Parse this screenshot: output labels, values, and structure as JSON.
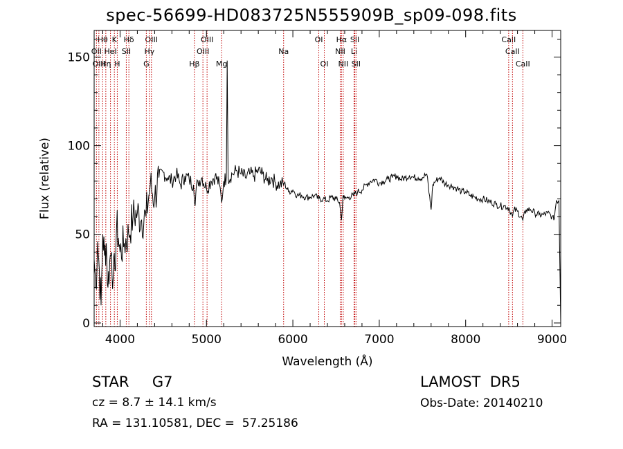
{
  "chart_data": {
    "type": "line",
    "title": "spec-56699-HD083725N555909B_sp09-098.fits",
    "xlabel": "Wavelength (Å)",
    "ylabel": "Flux (relative)",
    "xlim": [
      3700,
      9100
    ],
    "ylim": [
      -2,
      165
    ],
    "xticks": [
      4000,
      5000,
      6000,
      7000,
      8000,
      9000
    ],
    "yticks": [
      0,
      50,
      100,
      150
    ],
    "grid": false,
    "line_color": "#000000",
    "marker_color": "#c00000",
    "spectrum": {
      "x": [
        3700,
        3720,
        3740,
        3760,
        3780,
        3800,
        3820,
        3840,
        3860,
        3880,
        3900,
        3920,
        3940,
        3960,
        3980,
        4000,
        4050,
        4100,
        4150,
        4200,
        4250,
        4300,
        4350,
        4400,
        4450,
        4500,
        4550,
        4600,
        4650,
        4700,
        4750,
        4800,
        4850,
        4861,
        4900,
        4950,
        5000,
        5050,
        5100,
        5150,
        5175,
        5200,
        5230,
        5240,
        5250,
        5300,
        5350,
        5400,
        5450,
        5500,
        5550,
        5600,
        5650,
        5700,
        5750,
        5800,
        5850,
        5900,
        5950,
        6000,
        6050,
        6100,
        6150,
        6200,
        6250,
        6300,
        6350,
        6400,
        6450,
        6500,
        6540,
        6563,
        6580,
        6600,
        6650,
        6700,
        6750,
        6800,
        6850,
        6900,
        6950,
        7000,
        7050,
        7100,
        7150,
        7200,
        7250,
        7300,
        7350,
        7400,
        7450,
        7500,
        7550,
        7600,
        7620,
        7650,
        7700,
        7750,
        7800,
        7850,
        7900,
        7950,
        8000,
        8050,
        8100,
        8150,
        8200,
        8250,
        8300,
        8350,
        8400,
        8450,
        8500,
        8542,
        8560,
        8600,
        8662,
        8700,
        8750,
        8800,
        8850,
        8900,
        8950,
        9000,
        9020,
        9050,
        9080,
        9100
      ],
      "y": [
        36,
        20,
        46,
        30,
        10,
        50,
        38,
        45,
        20,
        35,
        40,
        25,
        30,
        55,
        48,
        40,
        45,
        50,
        60,
        62,
        58,
        60,
        78,
        70,
        82,
        85,
        82,
        80,
        84,
        78,
        83,
        81,
        78,
        68,
        80,
        82,
        76,
        80,
        83,
        78,
        68,
        80,
        82,
        148,
        82,
        84,
        86,
        84,
        82,
        84,
        83,
        86,
        84,
        80,
        82,
        79,
        78,
        79,
        74,
        75,
        72,
        72,
        71,
        71,
        72,
        70,
        70,
        69,
        71,
        70,
        68,
        58,
        72,
        70,
        71,
        72,
        74,
        75,
        78,
        80,
        81,
        79,
        80,
        81,
        82,
        83,
        81,
        82,
        83,
        82,
        82,
        82,
        84,
        64,
        78,
        80,
        82,
        79,
        78,
        77,
        76,
        74,
        74,
        72,
        71,
        70,
        70,
        69,
        68,
        67,
        66,
        66,
        65,
        60,
        64,
        63,
        58,
        64,
        64,
        62,
        61,
        61,
        62,
        60,
        58,
        69,
        69,
        0
      ]
    },
    "line_markers": [
      {
        "label": "Hθ",
        "x": 3798,
        "row": 0
      },
      {
        "label": "K",
        "x": 3934,
        "row": 0
      },
      {
        "label": "Hδ",
        "x": 4102,
        "row": 0
      },
      {
        "label": "OIII",
        "x": 4363,
        "row": 0
      },
      {
        "label": "OIII",
        "x": 5007,
        "row": 0
      },
      {
        "label": "OI",
        "x": 6300,
        "row": 0
      },
      {
        "label": "Hα",
        "x": 6563,
        "row": 0
      },
      {
        "label": "SII",
        "x": 6717,
        "row": 0
      },
      {
        "label": "CaII",
        "x": 8498,
        "row": 0
      },
      {
        "label": "OII",
        "x": 3727,
        "row": 1
      },
      {
        "label": "HeI",
        "x": 3889,
        "row": 1
      },
      {
        "label": "SII",
        "x": 4072,
        "row": 1
      },
      {
        "label": "Hγ",
        "x": 4340,
        "row": 1
      },
      {
        "label": "OIII",
        "x": 4959,
        "row": 1
      },
      {
        "label": "Na",
        "x": 5893,
        "row": 1
      },
      {
        "label": "NII",
        "x": 6548,
        "row": 1
      },
      {
        "label": "Li",
        "x": 6708,
        "row": 1
      },
      {
        "label": "CaII",
        "x": 8542,
        "row": 1
      },
      {
        "label": "OIII",
        "x": 3755,
        "row": 2
      },
      {
        "label": "Hη",
        "x": 3835,
        "row": 2
      },
      {
        "label": "H",
        "x": 3968,
        "row": 2
      },
      {
        "label": "G",
        "x": 4304,
        "row": 2
      },
      {
        "label": "Hβ",
        "x": 4861,
        "row": 2
      },
      {
        "label": "Mg",
        "x": 5175,
        "row": 2
      },
      {
        "label": "OI",
        "x": 6364,
        "row": 2
      },
      {
        "label": "NII",
        "x": 6583,
        "row": 2
      },
      {
        "label": "SII",
        "x": 6731,
        "row": 2
      },
      {
        "label": "CaII",
        "x": 8662,
        "row": 2
      }
    ]
  },
  "info": {
    "object_class": "STAR     G7",
    "redshift": "cz = 8.7 ± 14.1 km/s",
    "coords": "RA = 131.10581, DEC =  57.25186",
    "survey": "LAMOST  DR5",
    "obs_date": "Obs-Date: 20140210"
  }
}
